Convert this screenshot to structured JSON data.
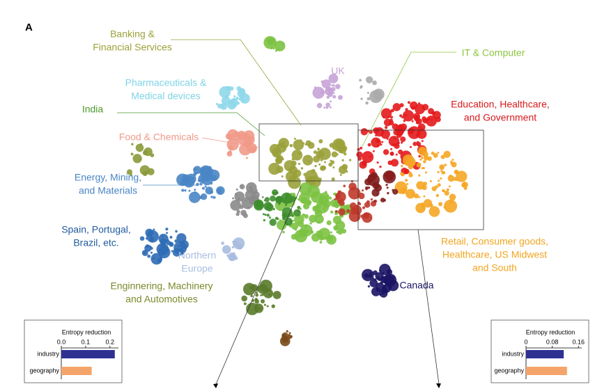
{
  "panel": "A",
  "clusters": [
    {
      "lines": [
        "Banking &",
        "Financial Services"
      ]
    },
    {
      "lines": [
        "IT & Computer"
      ]
    },
    {
      "lines": [
        "UK"
      ]
    },
    {
      "lines": [
        "Pharmaceuticals &",
        "Medical devices"
      ]
    },
    {
      "lines": [
        "India"
      ]
    },
    {
      "lines": [
        "Education, Healthcare,",
        "and Government"
      ]
    },
    {
      "lines": [
        "Food & Chemicals"
      ]
    },
    {
      "lines": [
        "Energy, Mining,",
        "and Materials"
      ]
    },
    {
      "lines": [
        "Spain, Portugal,",
        "Brazil, etc."
      ]
    },
    {
      "lines": [
        "Northern",
        "Europe"
      ]
    },
    {
      "lines": [
        "Retail, Consumer goods,",
        "Healthcare, US Midwest",
        "and South"
      ]
    },
    {
      "lines": [
        "Canada"
      ]
    },
    {
      "lines": [
        "Enginnering, Machinery",
        "and Automotives"
      ]
    }
  ],
  "chart_data": [
    {
      "type": "bar",
      "orientation": "horizontal",
      "title": "Entropy reduction",
      "categories": [
        "industry",
        "geography"
      ],
      "values": [
        0.22,
        0.125
      ],
      "colors": [
        "#2e3192",
        "#f4a46a"
      ],
      "xlim": [
        0,
        0.235
      ],
      "xticks": [
        {
          "value": 0,
          "label": "0.0"
        },
        0.1,
        0.2
      ]
    },
    {
      "type": "bar",
      "orientation": "horizontal",
      "title": "Entropy reduction",
      "categories": [
        "industry",
        "geography"
      ],
      "values": [
        0.115,
        0.125
      ],
      "colors": [
        "#2e3192",
        "#f4a46a"
      ],
      "xlim": [
        0,
        0.17
      ],
      "xticks": [
        0,
        0.08,
        0.16
      ]
    }
  ]
}
